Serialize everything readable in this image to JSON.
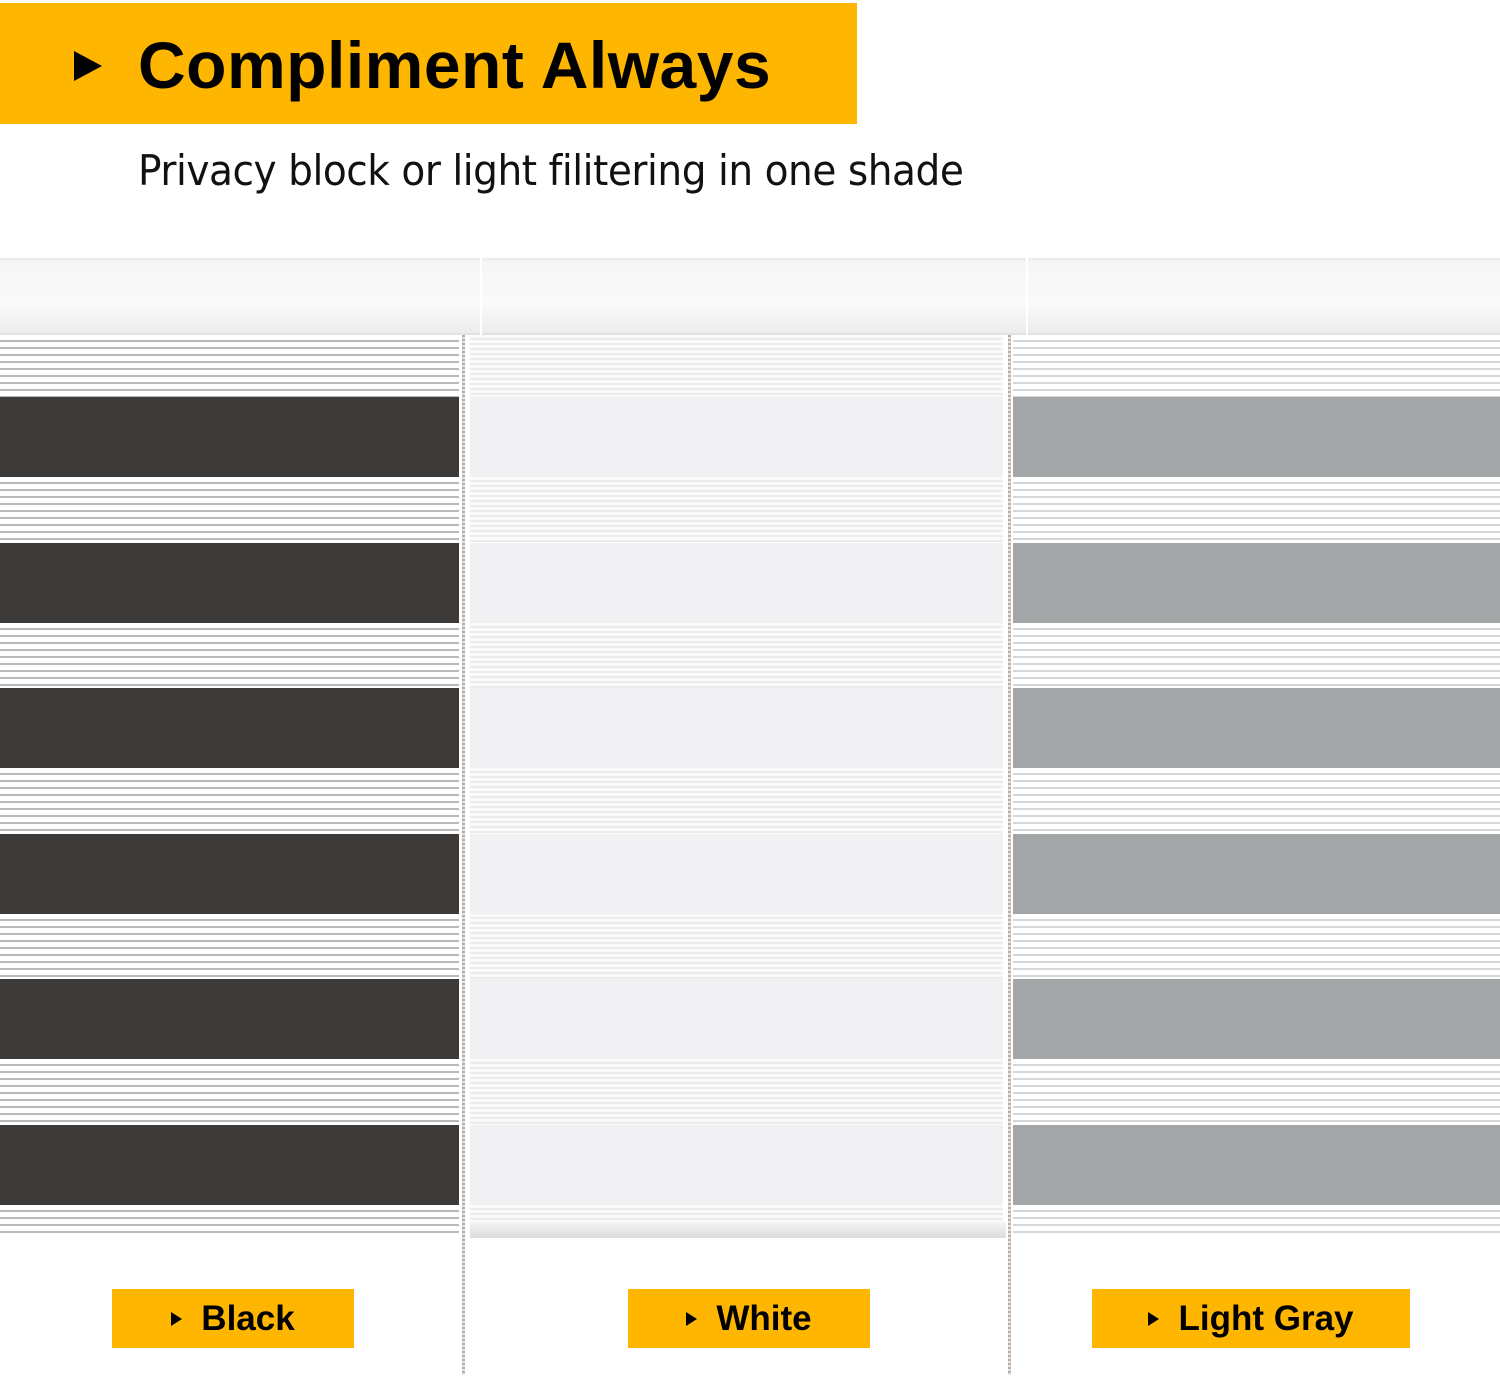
{
  "header": {
    "title": "Compliment Always",
    "subtitle": "Privacy block or light filitering in one shade"
  },
  "colors": {
    "accent": "#ffb600",
    "black_shade": "#3d3b3a",
    "white_shade": "#f1f1f3",
    "light_gray_shade": "#a3a6a7"
  },
  "shades": [
    {
      "label": "Black",
      "icon": "play-triangle-icon"
    },
    {
      "label": "White",
      "icon": "play-triangle-icon"
    },
    {
      "label": "Light Gray",
      "icon": "play-triangle-icon"
    }
  ]
}
